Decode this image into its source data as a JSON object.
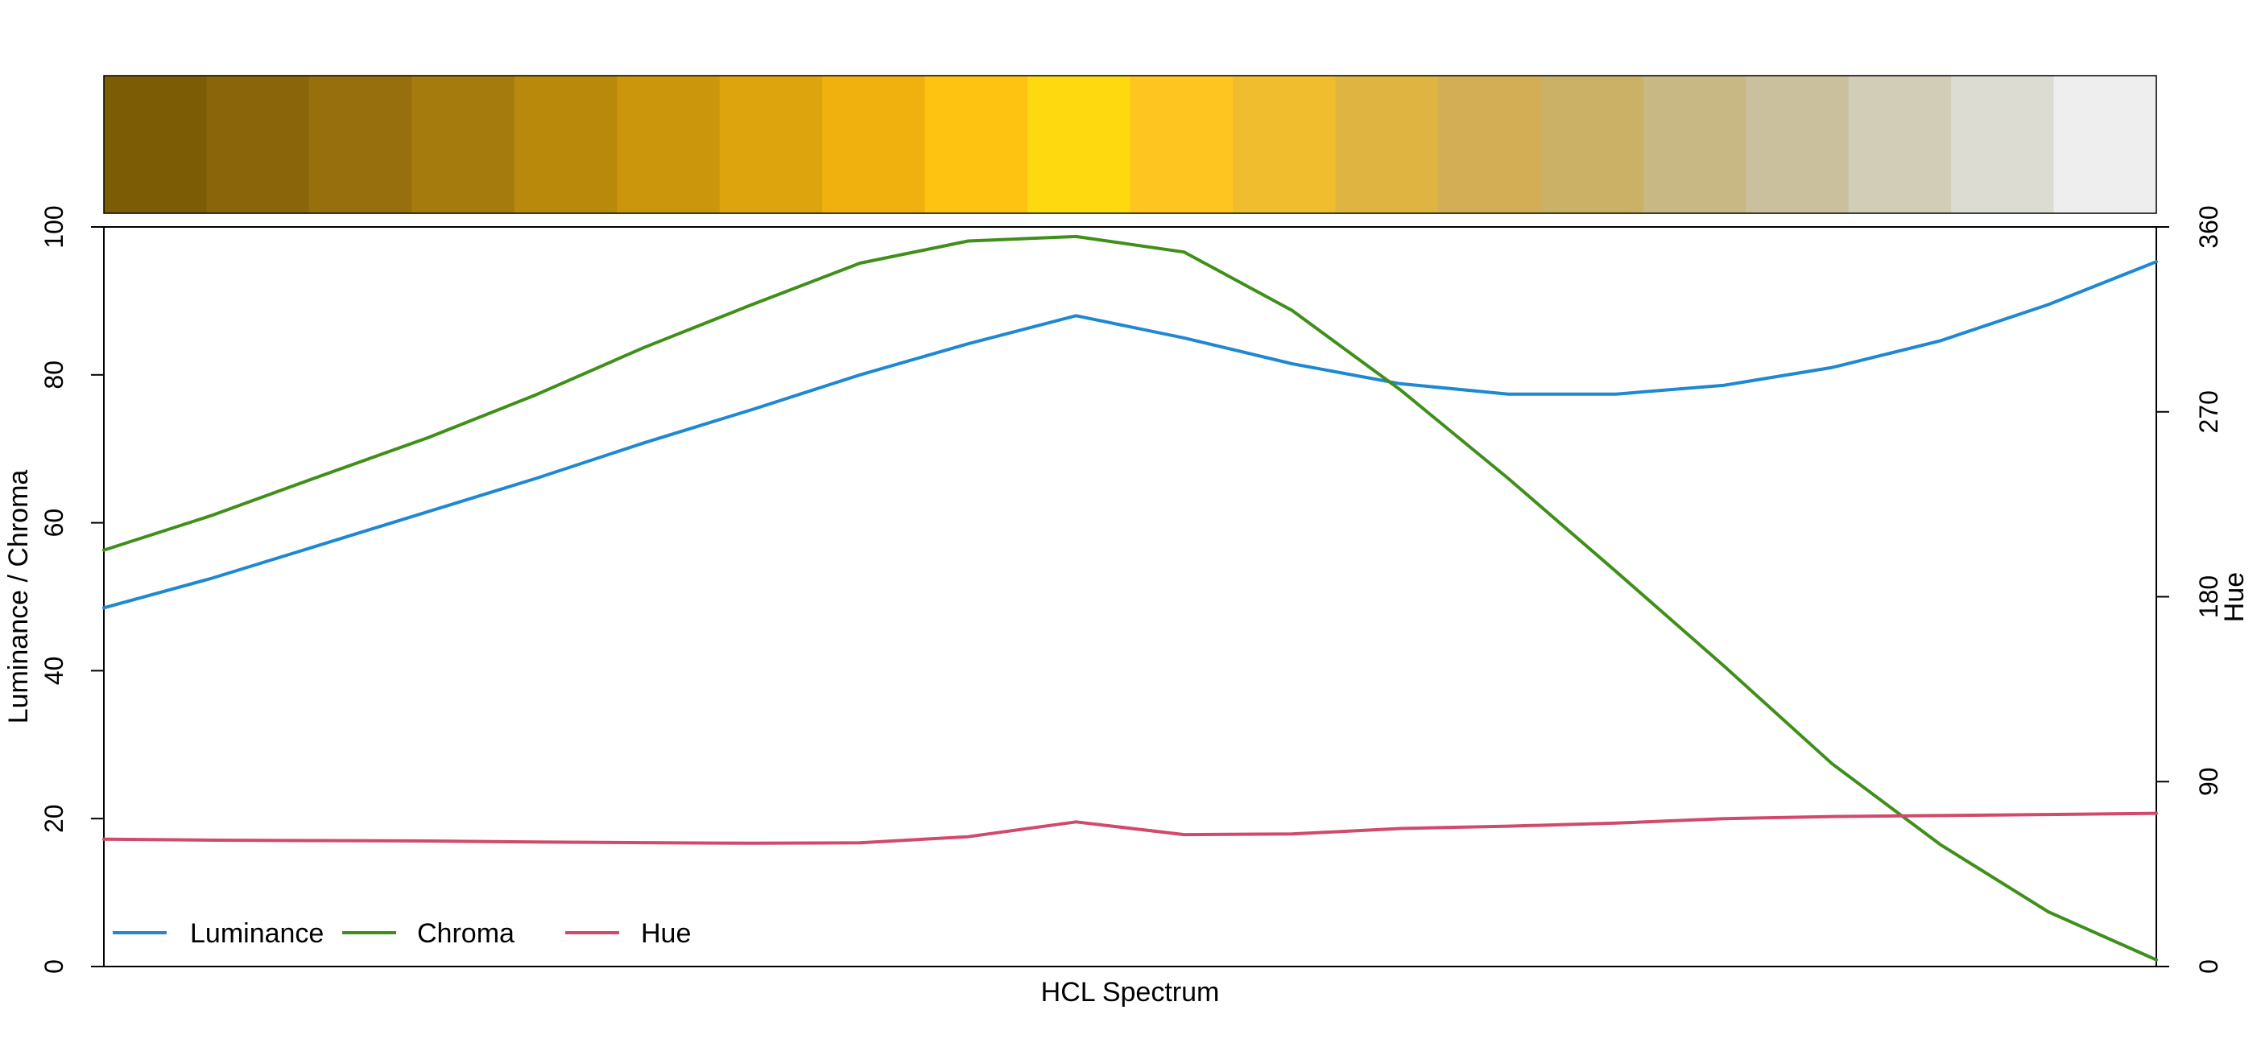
{
  "chart_data": {
    "type": "line",
    "xlabel": "HCL Spectrum",
    "ylabel": "Luminance / Chroma",
    "y2label": "Hue",
    "ylim": [
      0,
      100
    ],
    "y2lim": [
      0,
      360
    ],
    "yticks": [
      0,
      20,
      40,
      60,
      80,
      100
    ],
    "y2ticks": [
      0,
      90,
      180,
      270,
      360
    ],
    "grid": false,
    "legend_position": "bottom-left",
    "swatches": [
      "#7d5c06",
      "#8a650a",
      "#97700d",
      "#a67b0e",
      "#b8890b",
      "#cb960b",
      "#dea40d",
      "#f0b10f",
      "#fec210",
      "#fed910",
      "#fec520",
      "#f0bd2f",
      "#e0b440",
      "#d4ae55",
      "#cab166",
      "#c8b884",
      "#cbc09e",
      "#d2cdb6",
      "#dddcd2",
      "#efeeef"
    ],
    "series": [
      {
        "name": "Luminance",
        "color": "#1f88d1",
        "axis": "left",
        "values": [
          48.5,
          52.5,
          57,
          61.5,
          66,
          70.8,
          75.3,
          80,
          84.2,
          88,
          85,
          81.5,
          78.8,
          77.4,
          77.4,
          78.6,
          81,
          84.6,
          89.5,
          95.3
        ]
      },
      {
        "name": "Chroma",
        "color": "#3f8f1a",
        "axis": "left",
        "values": [
          56.3,
          61,
          66.3,
          71.5,
          77.3,
          83.7,
          89.5,
          95.1,
          98.1,
          98.7,
          96.6,
          88.7,
          78,
          66,
          53.4,
          40.6,
          27.4,
          16.5,
          7.4,
          0.9
        ]
      },
      {
        "name": "Hue",
        "color": "#d1496b",
        "axis": "right",
        "values": [
          62,
          61.5,
          61.3,
          61.1,
          60.6,
          60.3,
          60,
          60.2,
          63.2,
          70.4,
          64.2,
          64.5,
          67.2,
          68.3,
          69.8,
          72,
          73,
          73.5,
          74,
          74.6
        ]
      }
    ]
  }
}
